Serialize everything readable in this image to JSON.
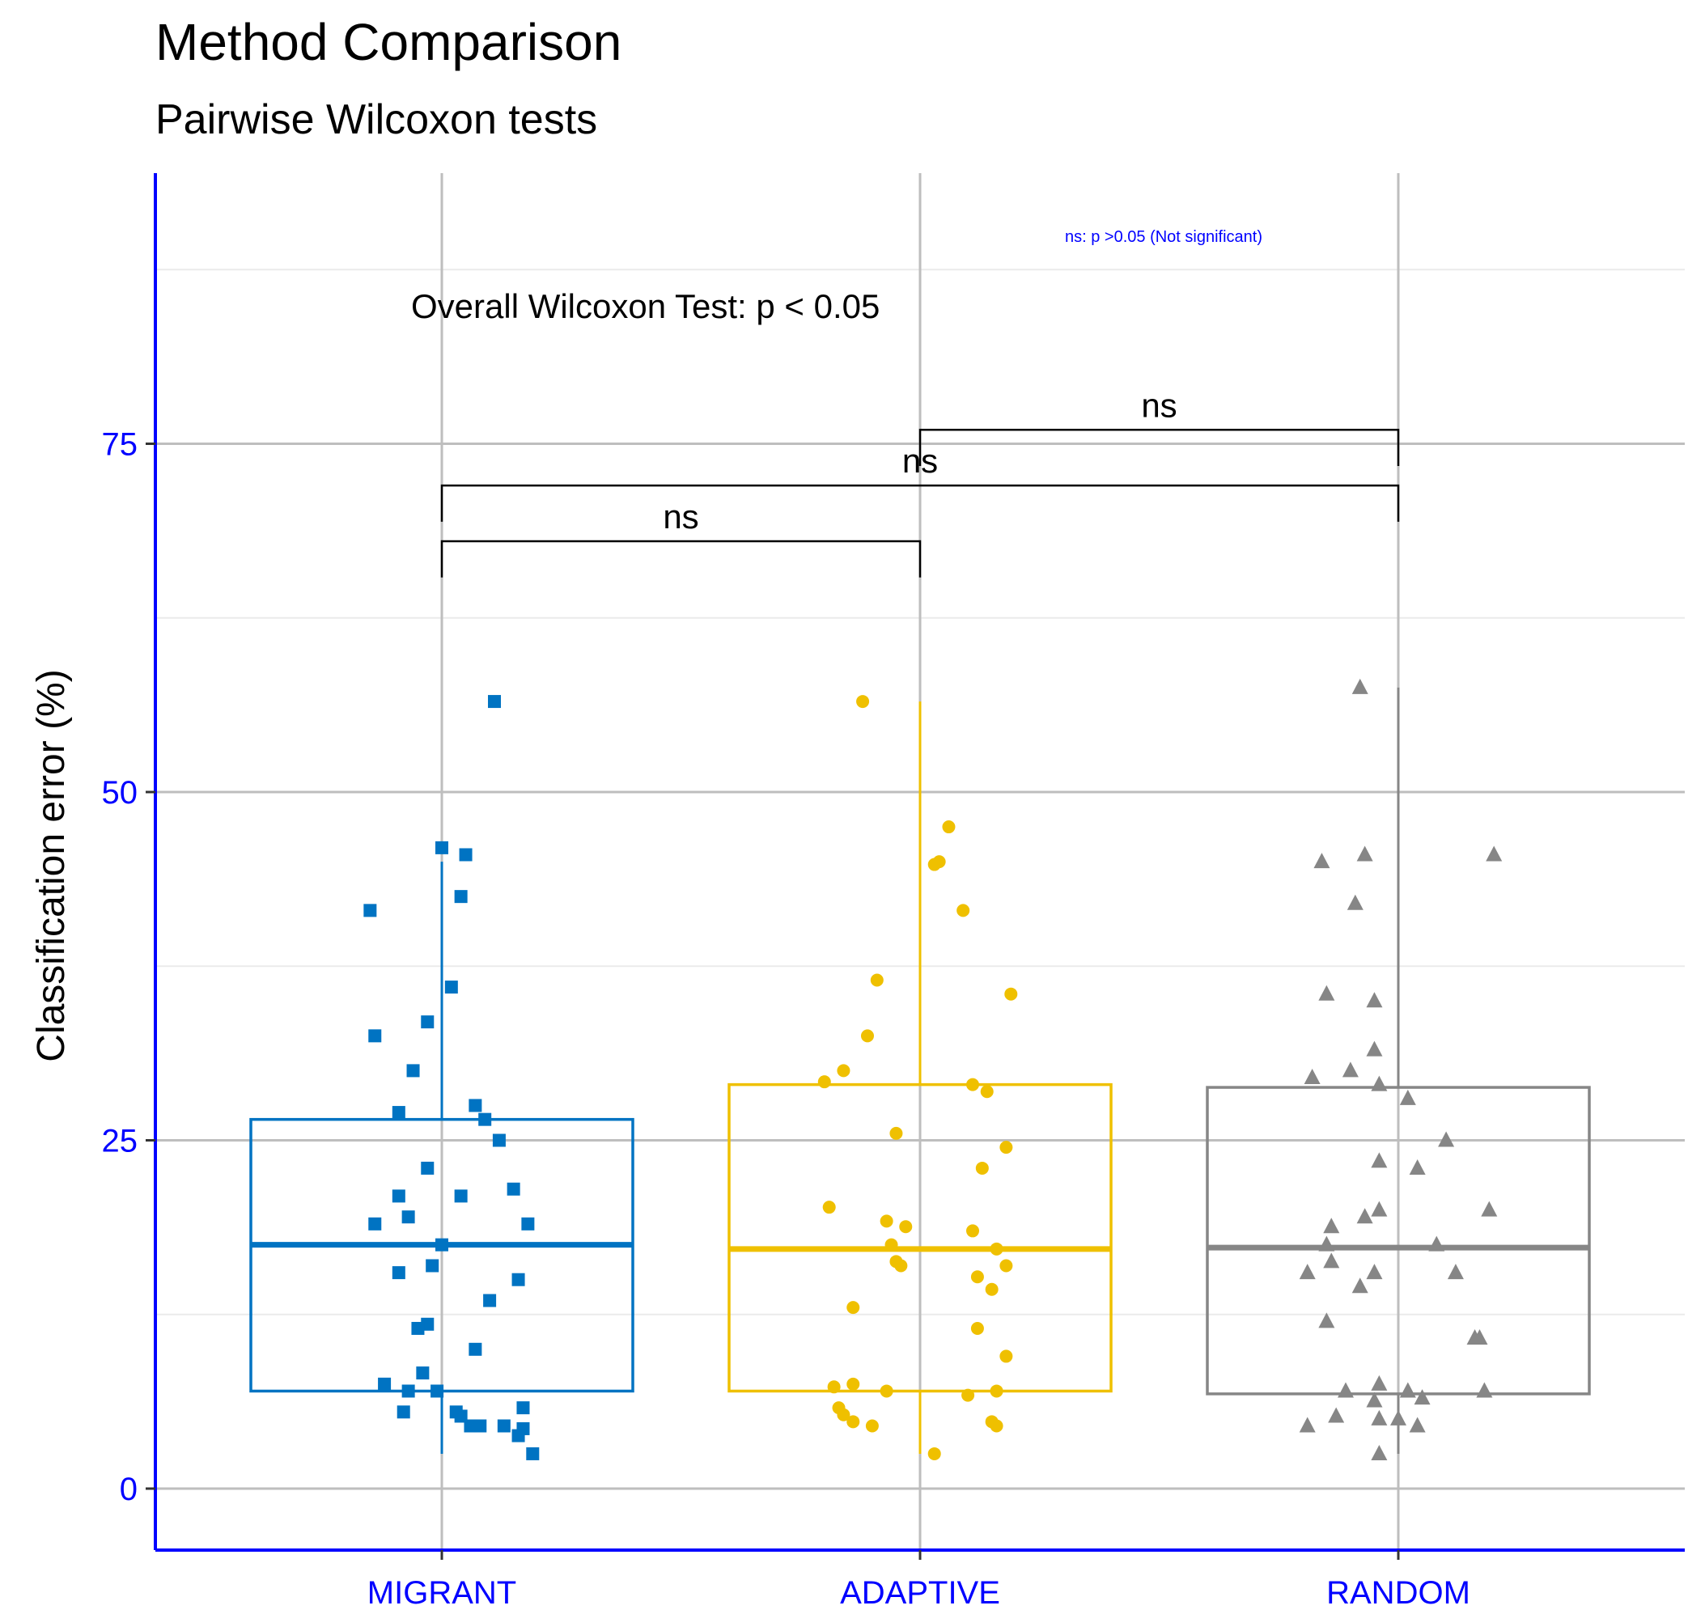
{
  "chart_data": {
    "type": "box",
    "title": "Method Comparison",
    "subtitle": "Pairwise Wilcoxon tests",
    "xlabel": "",
    "ylabel": "Classification error (%)",
    "ylim": [
      -4.2,
      94
    ],
    "y_ticks": [
      0,
      25,
      50,
      75
    ],
    "y_minor_gridlines": [
      12.5,
      37.5,
      62.5,
      87.5
    ],
    "grid": true,
    "axis_color": "#0000FF",
    "categories": [
      "MIGRANT",
      "ADAPTIVE",
      "RANDOM"
    ],
    "annotation": "Overall Wilcoxon Test: p < 0.05",
    "note": "ns: p >0.05 (Not significant)",
    "comparisons": [
      {
        "from": "MIGRANT",
        "to": "ADAPTIVE",
        "label": "ns",
        "y": 68,
        "drop": 2.6
      },
      {
        "from": "MIGRANT",
        "to": "RANDOM",
        "label": "ns",
        "y": 72,
        "drop": 2.6
      },
      {
        "from": "ADAPTIVE",
        "to": "RANDOM",
        "label": "ns",
        "y": 76,
        "drop": 2.6
      }
    ],
    "series": [
      {
        "name": "MIGRANT",
        "color": "#0073C2",
        "shape": "square",
        "box": {
          "q1": 7,
          "median": 17.5,
          "q3": 26.5,
          "whisker_low": 2.5,
          "whisker_high": 45
        },
        "points": [
          [
            -0.15,
            41.5
          ],
          [
            -0.09,
            27
          ],
          [
            -0.07,
            7
          ],
          [
            0.11,
            56.5
          ],
          [
            0.04,
            42.5
          ],
          [
            0.07,
            27.5
          ],
          [
            -0.09,
            21
          ],
          [
            -0.12,
            7.5
          ],
          [
            -0.14,
            32.5
          ],
          [
            0.1,
            13.5
          ],
          [
            0.13,
            4.5
          ],
          [
            0.06,
            4.5
          ],
          [
            -0.06,
            30
          ],
          [
            0.04,
            21
          ],
          [
            0.17,
            5.8
          ],
          [
            0.15,
            21.5
          ],
          [
            -0.07,
            19.5
          ],
          [
            -0.03,
            33.5
          ],
          [
            0.02,
            36
          ],
          [
            0.07,
            10
          ],
          [
            -0.03,
            23
          ],
          [
            0.0,
            17.5
          ],
          [
            0.03,
            5.5
          ],
          [
            -0.09,
            15.5
          ],
          [
            0.12,
            25
          ],
          [
            -0.01,
            7
          ],
          [
            0.17,
            4.3
          ],
          [
            0.04,
            5.2
          ],
          [
            -0.14,
            19
          ],
          [
            -0.03,
            11.8
          ],
          [
            -0.05,
            11.5
          ],
          [
            0.08,
            4.5
          ],
          [
            -0.04,
            8.3
          ],
          [
            0.19,
            2.5
          ],
          [
            0.16,
            3.8
          ],
          [
            0.0,
            46
          ],
          [
            -0.02,
            16
          ],
          [
            0.09,
            26.5
          ],
          [
            0.16,
            15
          ],
          [
            0.18,
            19
          ],
          [
            -0.08,
            5.5
          ],
          [
            0.05,
            45.5
          ]
        ]
      },
      {
        "name": "ADAPTIVE",
        "color": "#EFC000",
        "shape": "circle",
        "box": {
          "q1": 7,
          "median": 17.2,
          "q3": 29,
          "whisker_low": 2.5,
          "whisker_high": 56.5
        },
        "points": [
          [
            -0.12,
            56.5
          ],
          [
            0.06,
            47.5
          ],
          [
            0.04,
            45
          ],
          [
            0.03,
            44.8
          ],
          [
            0.09,
            41.5
          ],
          [
            -0.09,
            36.5
          ],
          [
            0.19,
            35.5
          ],
          [
            -0.11,
            32.5
          ],
          [
            -0.16,
            30
          ],
          [
            -0.2,
            29.2
          ],
          [
            0.11,
            29
          ],
          [
            0.14,
            28.5
          ],
          [
            -0.05,
            25.5
          ],
          [
            0.18,
            24.5
          ],
          [
            0.13,
            23
          ],
          [
            -0.19,
            20.2
          ],
          [
            -0.07,
            19.2
          ],
          [
            -0.03,
            18.8
          ],
          [
            0.11,
            18.5
          ],
          [
            -0.06,
            17.5
          ],
          [
            0.16,
            17.2
          ],
          [
            -0.05,
            16.3
          ],
          [
            -0.04,
            16
          ],
          [
            0.18,
            16
          ],
          [
            0.12,
            15.2
          ],
          [
            0.15,
            14.3
          ],
          [
            -0.14,
            13
          ],
          [
            0.12,
            11.5
          ],
          [
            0.18,
            9.5
          ],
          [
            -0.18,
            7.3
          ],
          [
            -0.14,
            7.5
          ],
          [
            -0.07,
            7
          ],
          [
            0.16,
            7
          ],
          [
            0.1,
            6.7
          ],
          [
            -0.17,
            5.8
          ],
          [
            -0.16,
            5.3
          ],
          [
            -0.14,
            4.8
          ],
          [
            -0.1,
            4.5
          ],
          [
            0.15,
            4.8
          ],
          [
            0.16,
            4.5
          ],
          [
            0.03,
            2.5
          ]
        ]
      },
      {
        "name": "RANDOM",
        "color": "#868686",
        "shape": "triangle",
        "box": {
          "q1": 6.8,
          "median": 17.3,
          "q3": 28.8,
          "whisker_low": 2.5,
          "whisker_high": 57.5
        },
        "points": [
          [
            -0.08,
            57.5
          ],
          [
            -0.16,
            45
          ],
          [
            -0.07,
            45.5
          ],
          [
            0.2,
            45.5
          ],
          [
            -0.09,
            42
          ],
          [
            -0.15,
            35.5
          ],
          [
            -0.05,
            35
          ],
          [
            -0.05,
            31.5
          ],
          [
            -0.18,
            29.5
          ],
          [
            -0.1,
            30
          ],
          [
            -0.04,
            29
          ],
          [
            0.02,
            28
          ],
          [
            0.1,
            25
          ],
          [
            -0.04,
            23.5
          ],
          [
            0.04,
            23
          ],
          [
            -0.14,
            18.8
          ],
          [
            -0.07,
            19.5
          ],
          [
            -0.04,
            20
          ],
          [
            0.19,
            20
          ],
          [
            -0.15,
            17.5
          ],
          [
            0.08,
            17.5
          ],
          [
            -0.14,
            16.3
          ],
          [
            -0.19,
            15.5
          ],
          [
            0.12,
            15.5
          ],
          [
            -0.05,
            15.5
          ],
          [
            -0.08,
            14.5
          ],
          [
            -0.15,
            12
          ],
          [
            0.16,
            10.8
          ],
          [
            0.17,
            10.8
          ],
          [
            -0.04,
            7.5
          ],
          [
            -0.11,
            7
          ],
          [
            0.02,
            7
          ],
          [
            0.18,
            7
          ],
          [
            -0.05,
            6.3
          ],
          [
            0.05,
            6.5
          ],
          [
            -0.13,
            5.2
          ],
          [
            -0.19,
            4.5
          ],
          [
            -0.04,
            5
          ],
          [
            0.0,
            5
          ],
          [
            0.04,
            4.5
          ],
          [
            -0.04,
            2.5
          ]
        ]
      }
    ]
  }
}
